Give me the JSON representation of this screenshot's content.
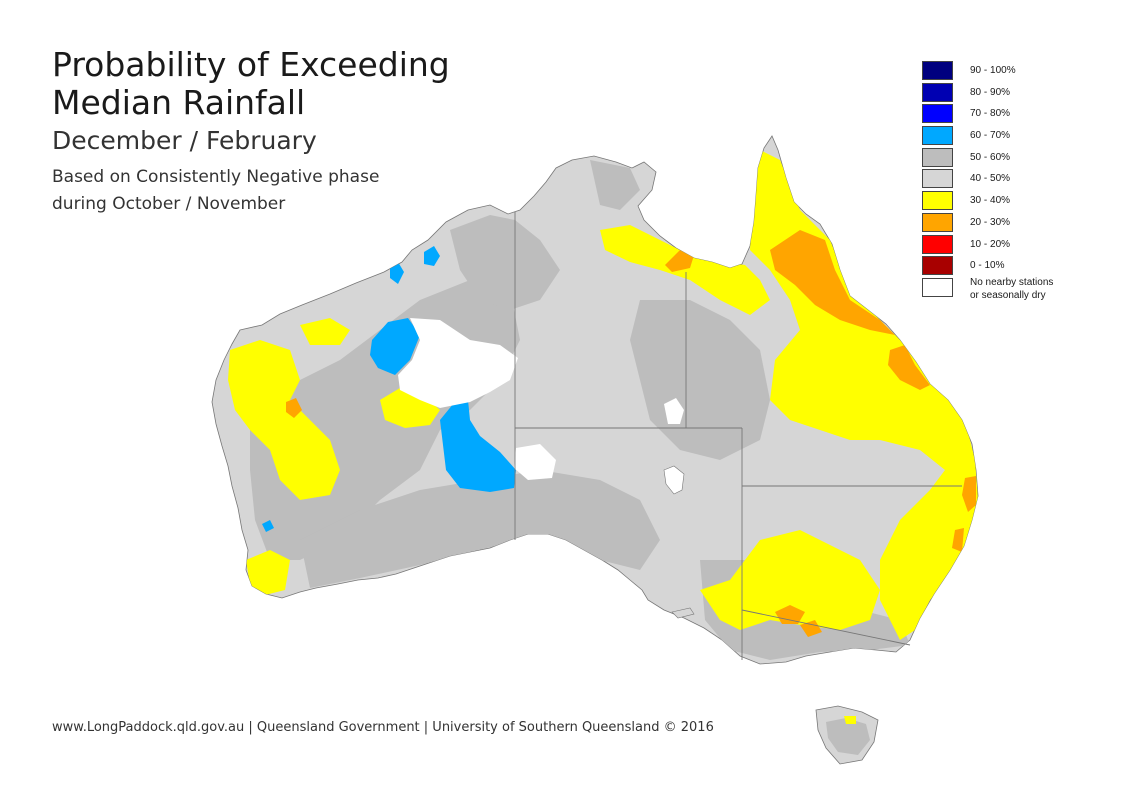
{
  "title": {
    "line1": "Probability of Exceeding",
    "line2": "Median Rainfall",
    "season": "December / February",
    "basis_line1": "Based on Consistently Negative phase",
    "basis_line2": "during October / November"
  },
  "legend": [
    {
      "label": "90 - 100%",
      "color": "#00007f"
    },
    {
      "label": "80 - 90%",
      "color": "#0000b2"
    },
    {
      "label": "70 - 80%",
      "color": "#0000ff"
    },
    {
      "label": "60 - 70%",
      "color": "#00a8ff"
    },
    {
      "label": "50 - 60%",
      "color": "#bdbdbd"
    },
    {
      "label": "40 - 50%",
      "color": "#d6d6d6"
    },
    {
      "label": "30 - 40%",
      "color": "#ffff00"
    },
    {
      "label": "20 - 30%",
      "color": "#ffa500"
    },
    {
      "label": "10 - 20%",
      "color": "#ff0000"
    },
    {
      "label": "0 - 10%",
      "color": "#a80000"
    },
    {
      "label_line1": "No nearby stations",
      "label_line2": "or seasonally dry",
      "color": "#ffffff"
    }
  ],
  "footer": "www.LongPaddock.qld.gov.au | Queensland Government | University of Southern Queensland © 2016"
}
